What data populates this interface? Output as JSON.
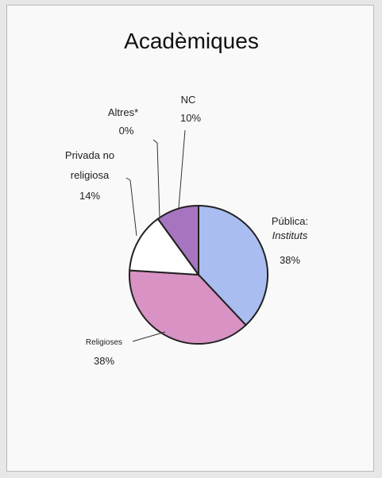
{
  "chart_data": {
    "type": "pie",
    "title": "Acadèmiques",
    "slices": [
      {
        "label": "Pública:",
        "label2": "Instituts",
        "value": 38,
        "value_text": "38%",
        "color": "#a9bdf0"
      },
      {
        "label": "Religioses",
        "value": 38,
        "value_text": "38%",
        "color": "#d992c4"
      },
      {
        "label": "Privada no",
        "label2": "religiosa",
        "value": 14,
        "value_text": "14%",
        "color": "#ffffff"
      },
      {
        "label": "Altres*",
        "value": 0,
        "value_text": "0%",
        "color": "#cccccc"
      },
      {
        "label": "NC",
        "value": 10,
        "value_text": "10%",
        "color": "#a775c0"
      }
    ]
  }
}
